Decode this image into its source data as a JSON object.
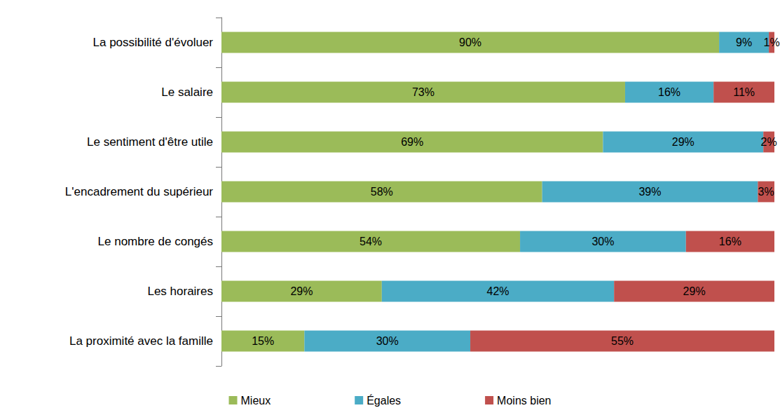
{
  "chart_data": {
    "type": "bar",
    "orientation": "horizontal",
    "stacked": true,
    "data_labels": true,
    "tick_labels": "y",
    "grid": false,
    "legend": "bottom",
    "categories": [
      "La possibilité d'évoluer",
      "Le salaire",
      "Le sentiment d'être utile",
      "L'encadrement du supérieur",
      "Le nombre de congés",
      "Les horaires",
      "La proximité avec la famille"
    ],
    "xlim": [
      0,
      100
    ],
    "xticks": [
      0,
      100
    ],
    "series": [
      {
        "name": "Mieux",
        "color": "#9bbb59",
        "values": [
          90,
          73,
          69,
          58,
          54,
          29,
          15
        ],
        "value_labels": [
          "90%",
          "73%",
          "69%",
          "58%",
          "54%",
          "29%",
          "15%"
        ]
      },
      {
        "name": "Égales",
        "color": "#4bacc6",
        "values": [
          9,
          16,
          29,
          39,
          30,
          42,
          30
        ],
        "value_labels": [
          "9%",
          "16%",
          "29%",
          "39%",
          "30%",
          "42%",
          "30%"
        ]
      },
      {
        "name": "Moins bien",
        "color": "#c0504d",
        "values": [
          1,
          11,
          2,
          3,
          16,
          29,
          55
        ],
        "value_labels": [
          "1%",
          "11%",
          "2%",
          "3%",
          "16%",
          "29%",
          "55%"
        ]
      }
    ]
  }
}
